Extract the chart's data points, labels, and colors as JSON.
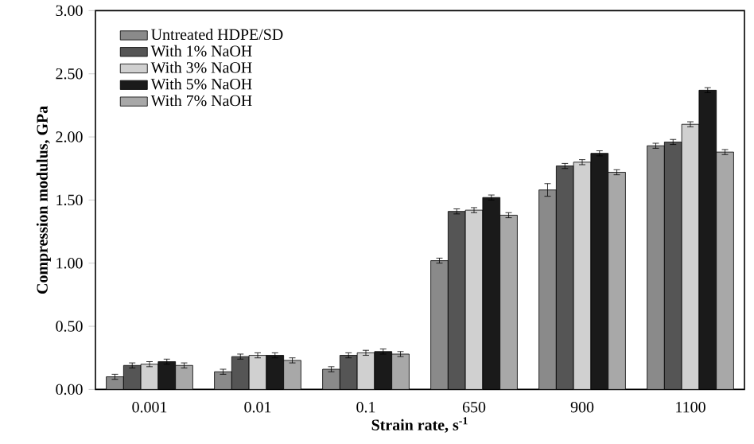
{
  "chart_data": {
    "type": "bar",
    "xlabel": "Strain rate, s$^{-1}$",
    "ylabel": "Compression modulus, GPa",
    "categories": [
      "0.001",
      "0.01",
      "0.1",
      "650",
      "900",
      "1100"
    ],
    "series": [
      {
        "name": "Untreated HDPE/SD",
        "color": "#8a8a8a",
        "values": [
          0.1,
          0.14,
          0.16,
          1.02,
          1.58,
          1.93
        ],
        "errors": [
          0.02,
          0.02,
          0.02,
          0.02,
          0.05,
          0.02
        ]
      },
      {
        "name": "With 1% NaOH",
        "color": "#555555",
        "values": [
          0.19,
          0.26,
          0.27,
          1.41,
          1.77,
          1.96
        ],
        "errors": [
          0.02,
          0.02,
          0.02,
          0.02,
          0.02,
          0.02
        ]
      },
      {
        "name": "With 3% NaOH",
        "color": "#d0d0d0",
        "values": [
          0.2,
          0.27,
          0.29,
          1.42,
          1.8,
          2.1
        ],
        "errors": [
          0.02,
          0.02,
          0.02,
          0.02,
          0.02,
          0.02
        ]
      },
      {
        "name": "With 5% NaOH",
        "color": "#1a1a1a",
        "values": [
          0.22,
          0.27,
          0.3,
          1.52,
          1.87,
          2.37
        ],
        "errors": [
          0.02,
          0.02,
          0.02,
          0.02,
          0.02,
          0.02
        ]
      },
      {
        "name": "With 7% NaOH",
        "color": "#a8a8a8",
        "values": [
          0.19,
          0.23,
          0.28,
          1.38,
          1.72,
          1.88
        ],
        "errors": [
          0.02,
          0.02,
          0.02,
          0.02,
          0.02,
          0.02
        ]
      }
    ],
    "ylim": [
      0,
      3
    ],
    "yticks": [
      {
        "value": 0,
        "label": "0.00"
      },
      {
        "value": 0.5,
        "label": "0.50"
      },
      {
        "value": 1,
        "label": "1.00"
      },
      {
        "value": 1.5,
        "label": "1.50"
      },
      {
        "value": 2,
        "label": "2.00"
      },
      {
        "value": 2.5,
        "label": "2.50"
      },
      {
        "value": 3,
        "label": "3.00"
      }
    ],
    "legend": "top left",
    "grid": false
  }
}
